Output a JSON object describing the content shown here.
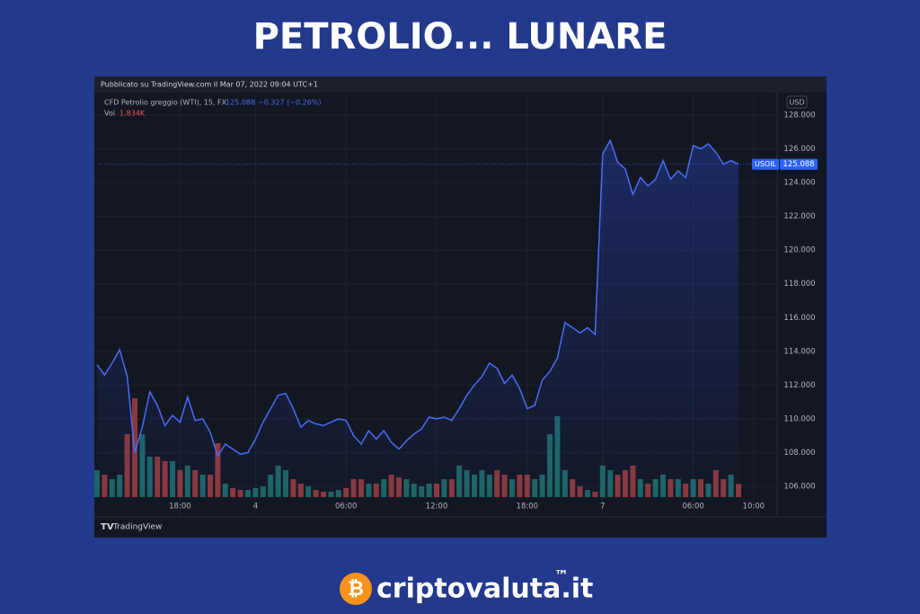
{
  "title": "PETROLIO... LUNARE",
  "published": "Pubblicato su TradingView.com il Mar 07, 2022 09:04 UTC+1",
  "footer": "TradingView",
  "brand": "criptovaluta.it",
  "brand_mark": "™",
  "chart_data": {
    "type": "line",
    "symbol": "CFD Petrolio greggio (WTI), 15, FX",
    "ticker": "USOIL",
    "currency": "USD",
    "change": "−0.327 (−0.26%)",
    "volume_title": "Vol",
    "last_price": {
      "value": 125.088,
      "label": "125.088"
    },
    "last_volume": {
      "value": 1834,
      "label": "1.834K"
    },
    "categories": [
      null,
      null,
      null,
      null,
      null,
      null,
      null,
      null,
      null,
      null,
      null,
      "18:00",
      null,
      null,
      null,
      null,
      null,
      null,
      null,
      null,
      null,
      "4",
      null,
      null,
      null,
      null,
      null,
      null,
      null,
      null,
      null,
      null,
      null,
      "06:00",
      null,
      null,
      null,
      null,
      null,
      null,
      null,
      null,
      null,
      null,
      null,
      "12:00",
      null,
      null,
      null,
      null,
      null,
      null,
      null,
      null,
      null,
      null,
      null,
      "18:00",
      null,
      null,
      null,
      null,
      null,
      null,
      null,
      null,
      null,
      "7",
      null,
      null,
      null,
      null,
      null,
      null,
      null,
      null,
      null,
      null,
      null,
      "06:00",
      null,
      null,
      null,
      null,
      null,
      null,
      null,
      "10:00"
    ],
    "series": [
      {
        "name": "CFD Petrolio greggio (WTI)",
        "color": "#4a6cf7",
        "values": [
          113.2,
          112.6,
          113.3,
          114.1,
          112.5,
          108.0,
          109.5,
          111.6,
          110.8,
          109.6,
          110.2,
          109.8,
          111.3,
          109.9,
          110.0,
          109.2,
          107.8,
          108.5,
          108.2,
          107.9,
          108.0,
          108.8,
          109.8,
          110.6,
          111.4,
          111.5,
          110.6,
          109.5,
          109.9,
          109.7,
          109.6,
          109.8,
          110.0,
          109.9,
          109.0,
          108.5,
          109.3,
          108.8,
          109.3,
          108.6,
          108.2,
          108.7,
          109.1,
          109.4,
          110.1,
          110.0,
          110.1,
          109.9,
          110.6,
          111.4,
          112.0,
          112.5,
          113.3,
          113.0,
          112.1,
          112.6,
          111.8,
          110.6,
          110.8,
          112.3,
          112.8,
          113.6,
          115.7,
          115.4,
          115.1,
          115.4,
          115.0,
          125.7,
          126.5,
          125.2,
          124.8,
          123.3,
          124.3,
          123.8,
          124.2,
          125.3,
          124.2,
          124.7,
          124.3,
          126.2,
          126.0,
          126.3,
          125.8,
          125.1,
          125.3,
          125.088,
          null,
          null
        ]
      },
      {
        "name": "Vol",
        "type": "volume",
        "up_color": "#26a69a",
        "down_color": "#ef5350",
        "values": [
          3750,
          3125,
          2500,
          3125,
          8750,
          13750,
          8750,
          5625,
          5625,
          5000,
          5000,
          3750,
          4375,
          3750,
          3125,
          3125,
          7500,
          1875,
          1250,
          1000,
          1000,
          1250,
          1500,
          3125,
          4375,
          3750,
          2500,
          1875,
          1500,
          1000,
          750,
          750,
          1000,
          1250,
          2500,
          2500,
          1875,
          1875,
          2500,
          3125,
          2750,
          2500,
          1875,
          1500,
          1875,
          1875,
          2500,
          2500,
          4375,
          3750,
          3125,
          3750,
          3125,
          3750,
          3125,
          2500,
          3125,
          3125,
          2500,
          3125,
          8750,
          11250,
          3750,
          2500,
          1500,
          1000,
          750,
          4375,
          3750,
          3125,
          3750,
          4375,
          2500,
          1875,
          2500,
          3125,
          2500,
          2500,
          1875,
          2500,
          2500,
          1875,
          3750,
          2500,
          3125,
          1834,
          null,
          null
        ]
      }
    ],
    "ylim": [
      105.25,
      129.23
    ],
    "yticks": [
      {
        "value": 106,
        "label": "106.000"
      },
      {
        "value": 108,
        "label": "108.000"
      },
      {
        "value": 110,
        "label": "110.000"
      },
      {
        "value": 112,
        "label": "112.000"
      },
      {
        "value": 114,
        "label": "114.000"
      },
      {
        "value": 116,
        "label": "116.000"
      },
      {
        "value": 118,
        "label": "118.000"
      },
      {
        "value": 120,
        "label": "120.000"
      },
      {
        "value": 122,
        "label": "122.000"
      },
      {
        "value": 124,
        "label": "124.000"
      },
      {
        "value": 126,
        "label": "126.000"
      },
      {
        "value": 128,
        "label": "128.000"
      }
    ],
    "volume_lim": [
      0,
      15000
    ],
    "grid": true
  }
}
